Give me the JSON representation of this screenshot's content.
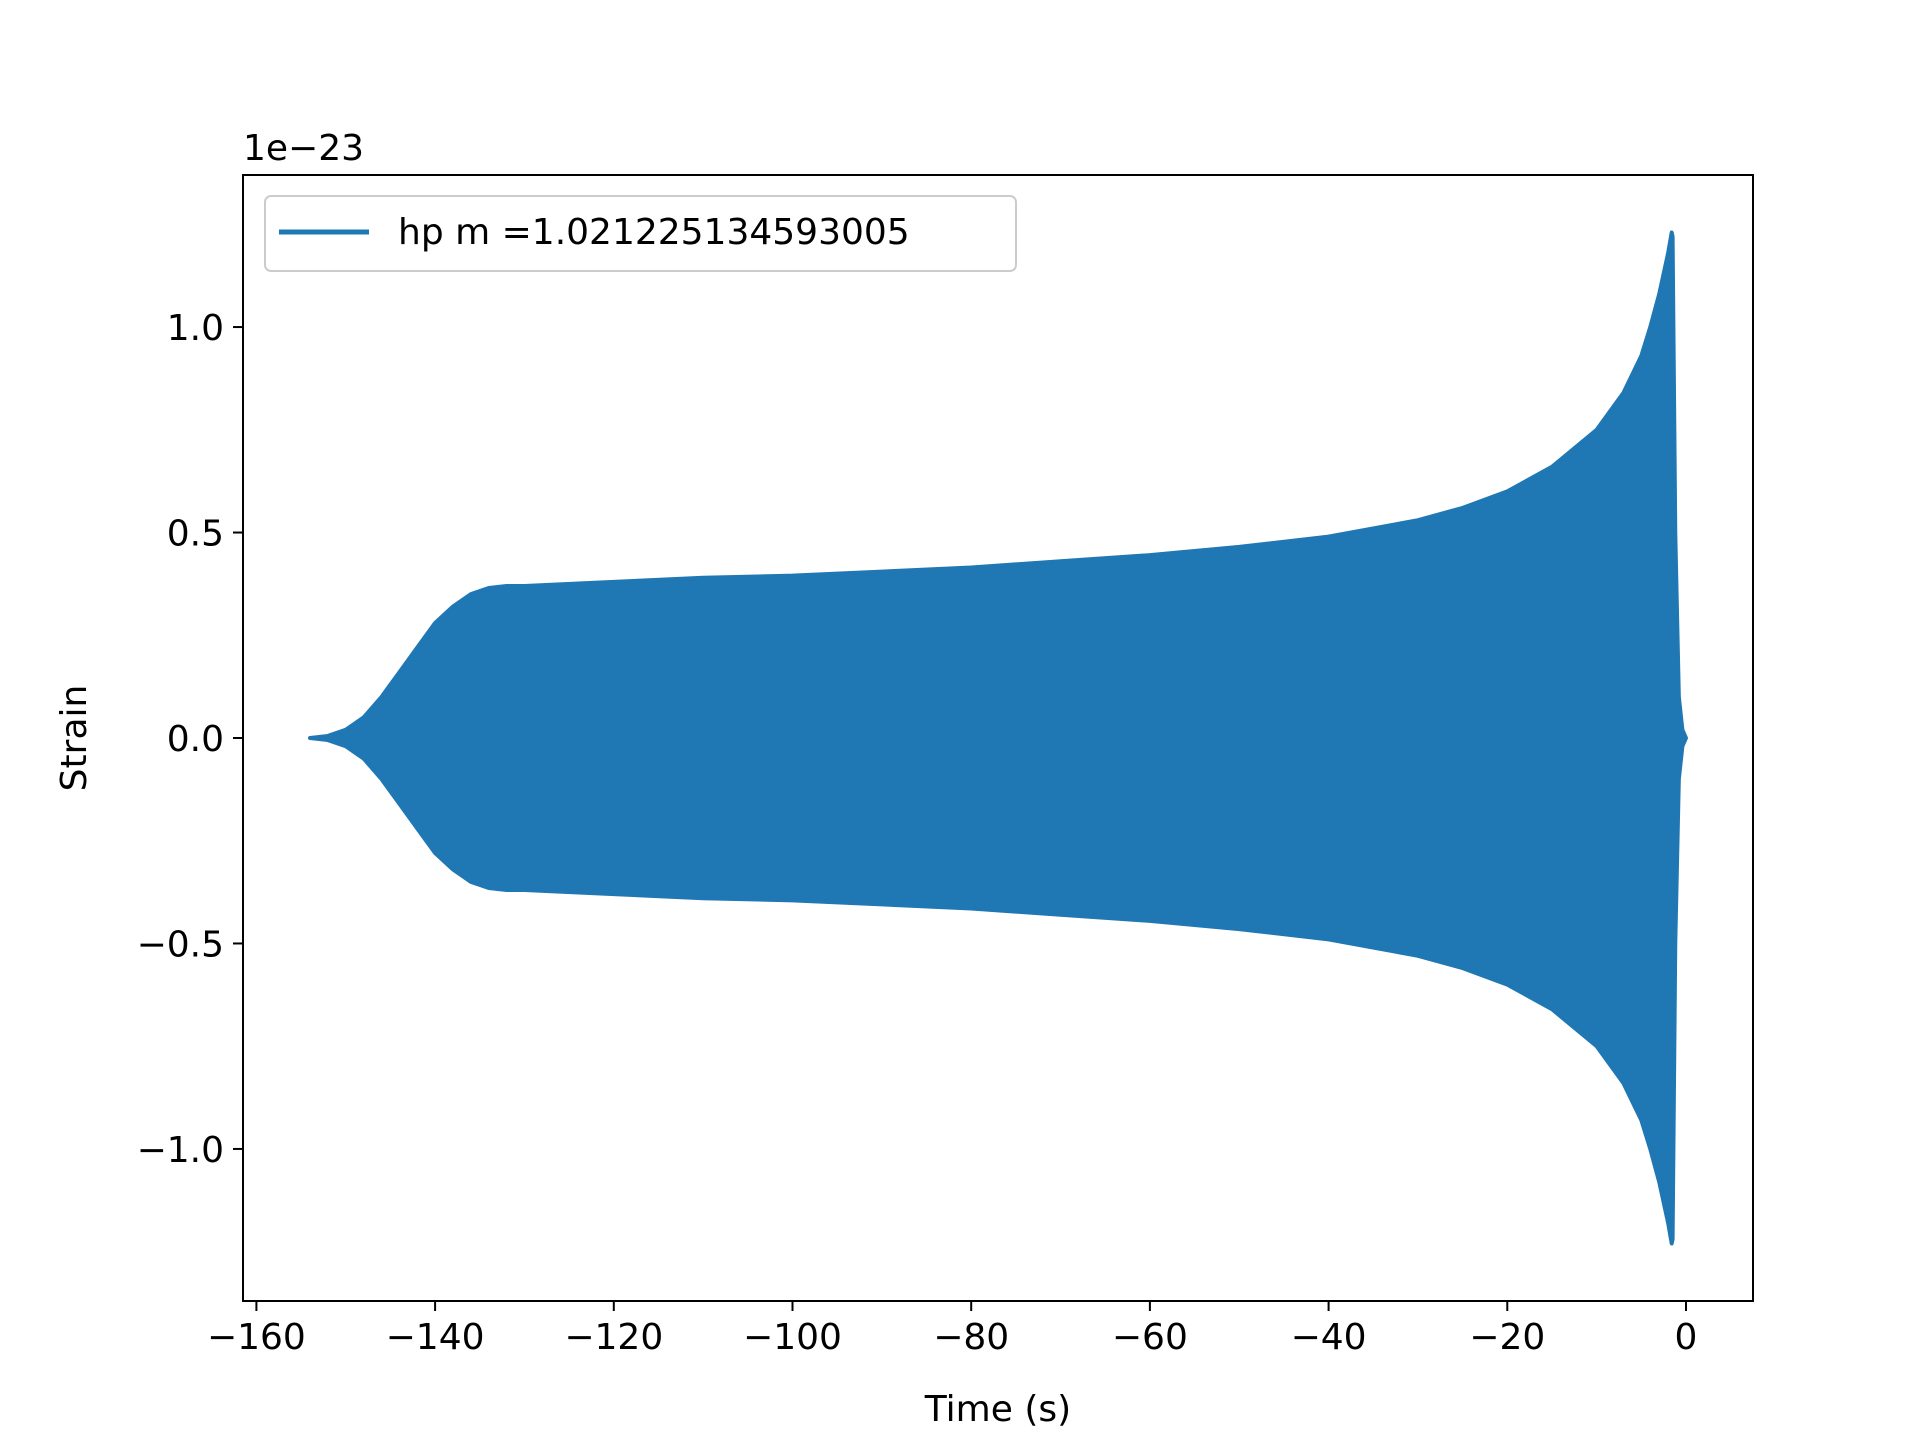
{
  "chart_data": {
    "type": "line",
    "title": "",
    "xlabel": "Time (s)",
    "ylabel": "Strain",
    "y_multiplier_label": "1e−23",
    "xlim": [
      -161.5,
      7.5
    ],
    "ylim": [
      -1.37,
      1.37
    ],
    "x_ticks": [
      -160,
      -140,
      -120,
      -100,
      -80,
      -60,
      -40,
      -20,
      0
    ],
    "x_tick_labels": [
      "−160",
      "−140",
      "−120",
      "−100",
      "−80",
      "−60",
      "−40",
      "−20",
      "0"
    ],
    "y_ticks": [
      -1.0,
      -0.5,
      0.0,
      0.5,
      1.0
    ],
    "y_tick_labels": [
      "−1.0",
      "−0.5",
      "0.0",
      "0.5",
      "1.0"
    ],
    "grid": false,
    "legend_position": "top-left",
    "series": [
      {
        "name": "hp m =1.021225134593005",
        "color": "#1f77b4",
        "description_type": "oscillating chirp (amplitude envelope, units of 1e-23)",
        "envelope": {
          "t": [
            -154.0,
            -152.0,
            -150.0,
            -148.0,
            -146.0,
            -144.0,
            -142.0,
            -140.0,
            -138.0,
            -136.0,
            -134.0,
            -132.0,
            -130.0,
            -120.0,
            -110.0,
            -100.0,
            -90.0,
            -80.0,
            -70.0,
            -60.0,
            -50.0,
            -40.0,
            -30.0,
            -25.0,
            -20.0,
            -15.0,
            -10.0,
            -7.0,
            -5.0,
            -4.0,
            -3.0,
            -2.0,
            -1.6,
            -1.5,
            -1.2,
            -0.8,
            -0.4,
            0.0
          ],
          "amplitude": [
            0.0,
            0.005,
            0.02,
            0.05,
            0.1,
            0.16,
            0.22,
            0.28,
            0.32,
            0.35,
            0.365,
            0.37,
            0.37,
            0.38,
            0.39,
            0.395,
            0.405,
            0.415,
            0.43,
            0.445,
            0.465,
            0.49,
            0.53,
            0.56,
            0.6,
            0.66,
            0.75,
            0.84,
            0.93,
            1.0,
            1.08,
            1.18,
            1.23,
            1.22,
            0.5,
            0.1,
            0.02,
            0.0
          ]
        }
      }
    ]
  }
}
